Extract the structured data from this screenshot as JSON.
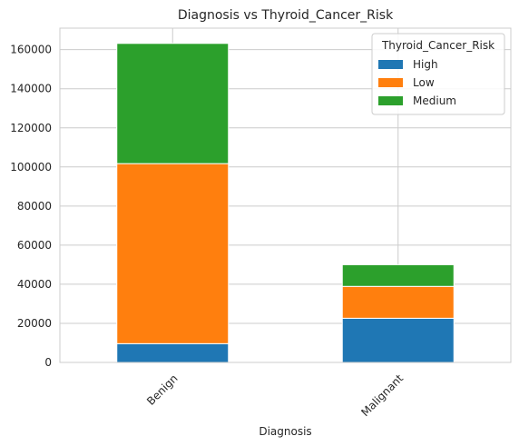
{
  "chart_data": {
    "type": "bar",
    "stacked": true,
    "title": "Diagnosis vs Thyroid_Cancer_Risk",
    "xlabel": "Diagnosis",
    "ylabel": "",
    "categories": [
      "Benign",
      "Malignant"
    ],
    "series": [
      {
        "name": "High",
        "color": "#1f77b4",
        "values": [
          9600,
          22600
        ]
      },
      {
        "name": "Low",
        "color": "#ff7f0e",
        "values": [
          92100,
          16300
        ]
      },
      {
        "name": "Medium",
        "color": "#2ca02c",
        "values": [
          61500,
          11100
        ]
      }
    ],
    "ylim": [
      0,
      171000
    ],
    "yticks": [
      0,
      20000,
      40000,
      60000,
      80000,
      100000,
      120000,
      140000,
      160000
    ],
    "grid": true,
    "legend": {
      "title": "Thyroid_Cancer_Risk",
      "placement": "top-right"
    }
  }
}
